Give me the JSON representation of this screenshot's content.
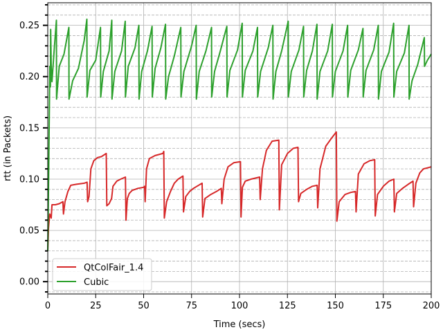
{
  "chart_data": {
    "type": "line",
    "title": "",
    "xlabel": "Time (secs)",
    "ylabel": "rtt (in Packets)",
    "xlim": [
      0,
      200
    ],
    "ylim": [
      -0.012,
      0.272
    ],
    "x_ticks": [
      0,
      25,
      50,
      75,
      100,
      125,
      150,
      175,
      200
    ],
    "x_tick_labels": [
      "0",
      "25",
      "50",
      "75",
      "100",
      "125",
      "150",
      "175",
      "200"
    ],
    "y_ticks": [
      0.0,
      0.05,
      0.1,
      0.15,
      0.2,
      0.25
    ],
    "y_tick_labels": [
      "0.00",
      "0.05",
      "0.10",
      "0.15",
      "0.20",
      "0.25"
    ],
    "y_minor_ticks": [
      -0.01,
      0.01,
      0.02,
      0.03,
      0.04,
      0.06,
      0.07,
      0.08,
      0.09,
      0.11,
      0.12,
      0.13,
      0.14,
      0.16,
      0.17,
      0.18,
      0.19,
      0.21,
      0.22,
      0.23,
      0.24,
      0.26,
      0.27
    ],
    "grid": "major solid, minor dashed",
    "legend_position": "bottom-left",
    "series": [
      {
        "name": "QtColFair_1.4",
        "color": "#d62728",
        "points": [
          [
            0,
            0.03
          ],
          [
            0.4,
            0.052
          ],
          [
            1,
            0.066
          ],
          [
            1.8,
            0.062
          ],
          [
            2.2,
            0.075
          ],
          [
            4,
            0.075
          ],
          [
            6,
            0.076
          ],
          [
            7.9,
            0.078
          ],
          [
            8.2,
            0.066
          ],
          [
            9,
            0.078
          ],
          [
            10.5,
            0.088
          ],
          [
            12,
            0.094
          ],
          [
            15,
            0.095
          ],
          [
            19,
            0.096
          ],
          [
            20.5,
            0.097
          ],
          [
            20.8,
            0.078
          ],
          [
            21.5,
            0.083
          ],
          [
            22.5,
            0.11
          ],
          [
            24,
            0.118
          ],
          [
            26,
            0.121
          ],
          [
            28,
            0.122
          ],
          [
            30.5,
            0.125
          ],
          [
            30.8,
            0.074
          ],
          [
            32,
            0.076
          ],
          [
            33.3,
            0.081
          ],
          [
            34,
            0.093
          ],
          [
            36,
            0.098
          ],
          [
            38,
            0.1
          ],
          [
            40.5,
            0.102
          ],
          [
            40.8,
            0.06
          ],
          [
            41.5,
            0.081
          ],
          [
            42.5,
            0.086
          ],
          [
            44,
            0.089
          ],
          [
            47,
            0.091
          ],
          [
            50,
            0.092
          ],
          [
            50.5,
            0.093
          ],
          [
            50.8,
            0.078
          ],
          [
            51.5,
            0.11
          ],
          [
            53,
            0.12
          ],
          [
            56,
            0.123
          ],
          [
            60,
            0.125
          ],
          [
            60.5,
            0.127
          ],
          [
            60.8,
            0.062
          ],
          [
            62,
            0.078
          ],
          [
            64,
            0.088
          ],
          [
            66,
            0.096
          ],
          [
            68,
            0.1
          ],
          [
            70.5,
            0.103
          ],
          [
            70.8,
            0.068
          ],
          [
            72,
            0.083
          ],
          [
            74,
            0.088
          ],
          [
            76,
            0.091
          ],
          [
            80.5,
            0.096
          ],
          [
            80.8,
            0.063
          ],
          [
            82,
            0.081
          ],
          [
            85,
            0.085
          ],
          [
            88,
            0.088
          ],
          [
            90.5,
            0.091
          ],
          [
            90.8,
            0.076
          ],
          [
            92,
            0.1
          ],
          [
            94,
            0.112
          ],
          [
            97,
            0.116
          ],
          [
            100.5,
            0.117
          ],
          [
            100.8,
            0.063
          ],
          [
            101.5,
            0.092
          ],
          [
            103,
            0.098
          ],
          [
            106,
            0.1
          ],
          [
            110.5,
            0.102
          ],
          [
            110.8,
            0.08
          ],
          [
            112,
            0.11
          ],
          [
            114,
            0.128
          ],
          [
            117,
            0.137
          ],
          [
            120.5,
            0.138
          ],
          [
            120.8,
            0.07
          ],
          [
            122,
            0.114
          ],
          [
            125,
            0.125
          ],
          [
            128,
            0.13
          ],
          [
            130.5,
            0.131
          ],
          [
            130.8,
            0.078
          ],
          [
            132,
            0.086
          ],
          [
            135,
            0.09
          ],
          [
            138,
            0.093
          ],
          [
            140.5,
            0.094
          ],
          [
            140.8,
            0.072
          ],
          [
            142,
            0.11
          ],
          [
            145,
            0.132
          ],
          [
            148,
            0.14
          ],
          [
            150.5,
            0.146
          ],
          [
            150.8,
            0.059
          ],
          [
            152,
            0.078
          ],
          [
            155,
            0.085
          ],
          [
            158,
            0.087
          ],
          [
            160.5,
            0.088
          ],
          [
            160.8,
            0.068
          ],
          [
            162,
            0.105
          ],
          [
            165,
            0.115
          ],
          [
            168,
            0.118
          ],
          [
            170.5,
            0.119
          ],
          [
            170.8,
            0.064
          ],
          [
            172,
            0.085
          ],
          [
            175,
            0.093
          ],
          [
            178,
            0.098
          ],
          [
            180.5,
            0.1
          ],
          [
            180.8,
            0.068
          ],
          [
            182,
            0.086
          ],
          [
            185,
            0.091
          ],
          [
            188,
            0.095
          ],
          [
            190.5,
            0.098
          ],
          [
            190.8,
            0.073
          ],
          [
            192,
            0.096
          ],
          [
            194,
            0.106
          ],
          [
            196,
            0.11
          ],
          [
            198,
            0.111
          ],
          [
            200,
            0.112
          ]
        ]
      },
      {
        "name": "Cubic",
        "color": "#2ca02c",
        "points": [
          [
            0,
            0.03
          ],
          [
            0.5,
            0.11
          ],
          [
            1.1,
            0.21
          ],
          [
            1.4,
            0.19
          ],
          [
            1.5,
            0.246
          ],
          [
            1.8,
            0.21
          ],
          [
            2.2,
            0.195
          ],
          [
            3.5,
            0.23
          ],
          [
            4.5,
            0.255
          ],
          [
            4.6,
            0.178
          ],
          [
            6,
            0.21
          ],
          [
            8.5,
            0.222
          ],
          [
            11,
            0.248
          ],
          [
            11.1,
            0.178
          ],
          [
            13,
            0.196
          ],
          [
            16,
            0.208
          ],
          [
            19,
            0.235
          ],
          [
            20.4,
            0.256
          ],
          [
            20.5,
            0.18
          ],
          [
            22,
            0.206
          ],
          [
            25,
            0.216
          ],
          [
            27.5,
            0.248
          ],
          [
            27.6,
            0.18
          ],
          [
            29,
            0.205
          ],
          [
            32,
            0.225
          ],
          [
            33.4,
            0.255
          ],
          [
            33.5,
            0.178
          ],
          [
            35,
            0.205
          ],
          [
            38.5,
            0.225
          ],
          [
            40.4,
            0.254
          ],
          [
            40.5,
            0.18
          ],
          [
            42,
            0.21
          ],
          [
            45.5,
            0.228
          ],
          [
            47.5,
            0.25
          ],
          [
            47.6,
            0.178
          ],
          [
            49,
            0.205
          ],
          [
            52,
            0.225
          ],
          [
            54.4,
            0.249
          ],
          [
            54.5,
            0.18
          ],
          [
            56,
            0.208
          ],
          [
            59,
            0.228
          ],
          [
            61.4,
            0.251
          ],
          [
            61.5,
            0.178
          ],
          [
            63,
            0.2
          ],
          [
            66,
            0.22
          ],
          [
            69.4,
            0.248
          ],
          [
            69.5,
            0.18
          ],
          [
            71,
            0.205
          ],
          [
            75,
            0.23
          ],
          [
            77.4,
            0.25
          ],
          [
            77.5,
            0.178
          ],
          [
            79,
            0.205
          ],
          [
            82.5,
            0.225
          ],
          [
            85.4,
            0.248
          ],
          [
            85.5,
            0.18
          ],
          [
            87,
            0.205
          ],
          [
            90,
            0.225
          ],
          [
            93.4,
            0.249
          ],
          [
            93.5,
            0.18
          ],
          [
            95,
            0.206
          ],
          [
            99,
            0.226
          ],
          [
            101.4,
            0.252
          ],
          [
            101.5,
            0.18
          ],
          [
            103,
            0.206
          ],
          [
            107,
            0.225
          ],
          [
            109.4,
            0.248
          ],
          [
            109.5,
            0.18
          ],
          [
            111,
            0.205
          ],
          [
            115,
            0.228
          ],
          [
            117.4,
            0.25
          ],
          [
            117.5,
            0.178
          ],
          [
            119,
            0.205
          ],
          [
            122,
            0.225
          ],
          [
            125.4,
            0.254
          ],
          [
            125.5,
            0.18
          ],
          [
            127,
            0.205
          ],
          [
            131,
            0.226
          ],
          [
            133.4,
            0.249
          ],
          [
            133.5,
            0.18
          ],
          [
            135,
            0.206
          ],
          [
            138,
            0.225
          ],
          [
            140.4,
            0.251
          ],
          [
            140.5,
            0.178
          ],
          [
            142,
            0.205
          ],
          [
            146,
            0.225
          ],
          [
            148.4,
            0.251
          ],
          [
            148.5,
            0.18
          ],
          [
            150,
            0.205
          ],
          [
            154,
            0.225
          ],
          [
            156.4,
            0.25
          ],
          [
            156.5,
            0.18
          ],
          [
            158,
            0.206
          ],
          [
            162,
            0.226
          ],
          [
            164.4,
            0.247
          ],
          [
            164.5,
            0.18
          ],
          [
            166,
            0.206
          ],
          [
            170,
            0.226
          ],
          [
            172.4,
            0.25
          ],
          [
            172.5,
            0.178
          ],
          [
            174,
            0.205
          ],
          [
            178,
            0.224
          ],
          [
            180.4,
            0.252
          ],
          [
            180.5,
            0.18
          ],
          [
            182,
            0.205
          ],
          [
            186,
            0.223
          ],
          [
            188.4,
            0.25
          ],
          [
            188.5,
            0.178
          ],
          [
            190,
            0.196
          ],
          [
            193,
            0.212
          ],
          [
            196.4,
            0.238
          ],
          [
            196.5,
            0.21
          ],
          [
            198,
            0.216
          ],
          [
            200,
            0.222
          ]
        ]
      }
    ]
  }
}
